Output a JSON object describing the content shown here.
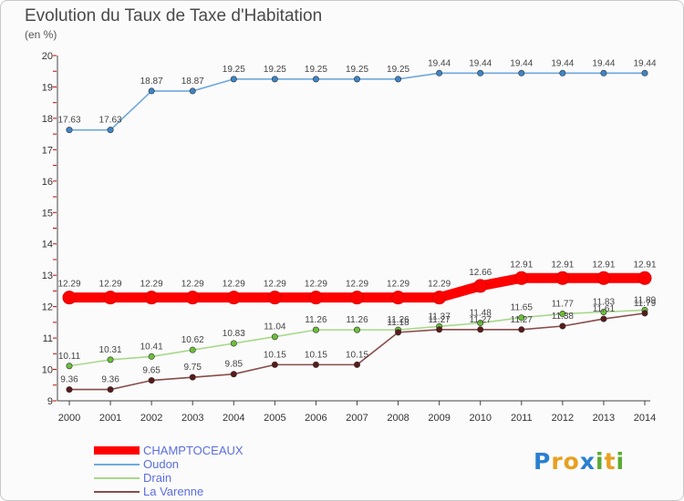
{
  "title": "Evolution du Taux de Taxe d'Habitation",
  "subtitle": "(en %)",
  "logo": {
    "text": "Proxiti",
    "colors": [
      "#2a7fd1",
      "#e8a020",
      "#e8a020",
      "#2a7fd1",
      "#5aaa30",
      "#e8a020",
      "#5aaa30"
    ]
  },
  "chart_data": {
    "type": "line",
    "title": "Evolution du Taux de Taxe d'Habitation",
    "ylabel": "(en %)",
    "xlabel": "",
    "ylim": [
      9,
      20
    ],
    "yticks": [
      "9",
      "10",
      "11",
      "12",
      "13",
      "14",
      "15",
      "16",
      "17",
      "18",
      "19",
      "20"
    ],
    "x": [
      "2000",
      "2001",
      "2002",
      "2003",
      "2004",
      "2005",
      "2006",
      "2007",
      "2008",
      "2009",
      "2010",
      "2011",
      "2012",
      "2013",
      "2014"
    ],
    "grid": false,
    "legend": "bottom-left",
    "series": [
      {
        "name": "CHAMPTOCEAUX",
        "color": "#ff0000",
        "marker": "#dd0000",
        "emphasis": true,
        "values": [
          12.29,
          12.29,
          12.29,
          12.29,
          12.29,
          12.29,
          12.29,
          12.29,
          12.29,
          12.29,
          12.66,
          12.91,
          12.91,
          12.91,
          12.91
        ],
        "labels": [
          "12.29",
          "12.29",
          "12.29",
          "12.29",
          "12.29",
          "12.29",
          "12.29",
          "12.29",
          "12.29",
          "12.29",
          "12.66",
          "12.91",
          "12.91",
          "12.91",
          "12.91"
        ]
      },
      {
        "name": "Oudon",
        "color": "#6fa8dc",
        "marker": "#3d85c6",
        "values": [
          17.63,
          17.63,
          18.87,
          18.87,
          19.25,
          19.25,
          19.25,
          19.25,
          19.25,
          19.44,
          19.44,
          19.44,
          19.44,
          19.44,
          19.44
        ],
        "labels": [
          "17.63",
          "17.63",
          "18.87",
          "18.87",
          "19.25",
          "19.25",
          "19.25",
          "19.25",
          "19.25",
          "19.44",
          "19.44",
          "19.44",
          "19.44",
          "19.44",
          "19.44"
        ]
      },
      {
        "name": "Drain",
        "color": "#a8d88a",
        "marker": "#6cbf3a",
        "values": [
          10.11,
          10.31,
          10.41,
          10.62,
          10.83,
          11.04,
          11.26,
          11.26,
          11.26,
          11.37,
          11.48,
          11.65,
          11.77,
          11.83,
          11.89
        ],
        "labels": [
          "10.11",
          "10.31",
          "10.41",
          "10.62",
          "10.83",
          "11.04",
          "11.26",
          "11.26",
          "11.26",
          "11.37",
          "11.48",
          "11.65",
          "11.77",
          "11.83",
          "11.89"
        ]
      },
      {
        "name": "La Varenne",
        "color": "#8a4b4b",
        "marker": "#5a1a1a",
        "values": [
          9.36,
          9.36,
          9.65,
          9.75,
          9.85,
          10.15,
          10.15,
          10.15,
          11.18,
          11.27,
          11.27,
          11.27,
          11.38,
          11.61,
          11.79
        ],
        "labels": [
          "9.36",
          "9.36",
          "9.65",
          "9.75",
          "9.85",
          "10.15",
          "10.15",
          "10.15",
          "11.18",
          "11.27",
          "11.27",
          "11.27",
          "11.38",
          "11.61",
          "11.79"
        ]
      }
    ]
  }
}
